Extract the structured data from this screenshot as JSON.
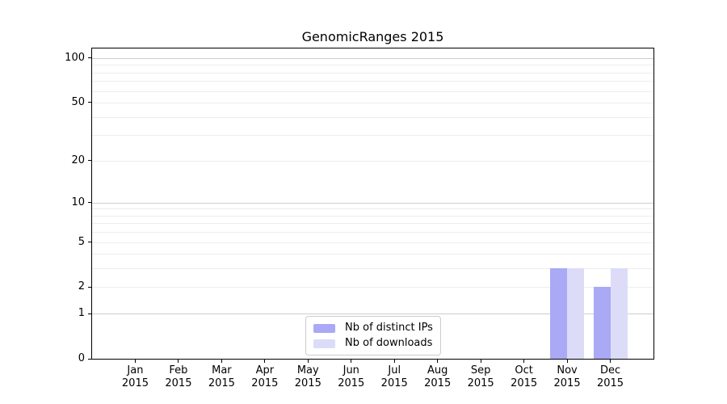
{
  "chart_data": {
    "type": "bar",
    "title": "GenomicRanges 2015",
    "categories": [
      "Jan",
      "Feb",
      "Mar",
      "Apr",
      "May",
      "Jun",
      "Jul",
      "Aug",
      "Sep",
      "Oct",
      "Nov",
      "Dec"
    ],
    "category_sublabel": "2015",
    "series": [
      {
        "name": "Nb of distinct IPs",
        "color": "#a9a9f6",
        "values": [
          0,
          0,
          0,
          0,
          0,
          0,
          0,
          0,
          0,
          0,
          3,
          2
        ]
      },
      {
        "name": "Nb of downloads",
        "color": "#dcdcf9",
        "values": [
          0,
          0,
          0,
          0,
          0,
          0,
          0,
          0,
          0,
          0,
          3,
          3
        ]
      }
    ],
    "xlabel": "",
    "ylabel": "",
    "yscale": "log1p",
    "ylim": [
      0,
      116
    ],
    "yticks": [
      0,
      1,
      2,
      5,
      10,
      20,
      50,
      100
    ],
    "major_gridlines": [
      1,
      10,
      100
    ],
    "minor_gridlines": [
      2,
      3,
      4,
      5,
      6,
      7,
      8,
      9,
      20,
      30,
      40,
      50,
      60,
      70,
      80,
      90
    ],
    "grid": "horizontal",
    "legend_position": "lower center",
    "colors": {
      "major_gridline": "#cdcdcd",
      "minor_gridline": "#ededed",
      "axis": "#000000",
      "background": "#ffffff"
    }
  }
}
